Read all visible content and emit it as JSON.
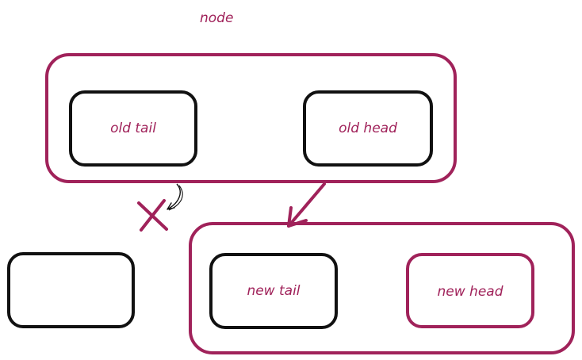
{
  "colors": {
    "accent": "#a0225a",
    "stroke": "#111111",
    "background": "#ffffff"
  },
  "title": "node",
  "old_node": {
    "tail_label": "old tail",
    "head_label": "old head"
  },
  "new_node": {
    "tail_label": "new tail",
    "head_label": "new head"
  },
  "detached_box": {
    "label": ""
  },
  "icons": {
    "cut_mark": "cross-icon",
    "pointer": "curved-arrow-icon",
    "link": "arrow-icon"
  }
}
